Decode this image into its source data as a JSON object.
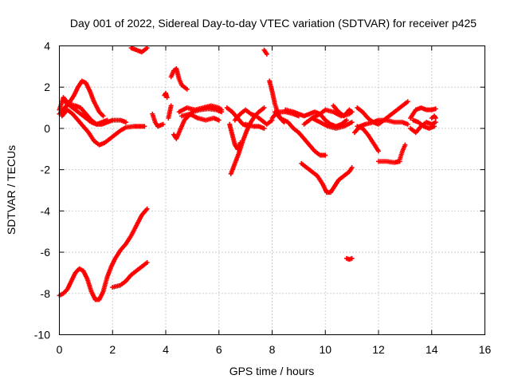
{
  "chart_data": {
    "type": "scatter",
    "title": "Day 001 of 2022, Sidereal Day-to-day VTEC variation (SDTVAR) for receiver p425",
    "xlabel": "GPS time / hours",
    "ylabel": "SDTVAR / TECUs",
    "xlim": [
      0,
      16
    ],
    "ylim": [
      -10,
      4
    ],
    "xticks": [
      "0",
      "2",
      "4",
      "6",
      "8",
      "10",
      "12",
      "14",
      "16"
    ],
    "yticks": [
      "-10",
      "-8",
      "-6",
      "-4",
      "-2",
      "0",
      "2",
      "4"
    ],
    "grid": true,
    "marker": "plus",
    "series": [
      {
        "name": "SDTVAR",
        "color": "#ff0000",
        "tracks": [
          [
            [
              0,
              0.9
            ],
            [
              0.15,
              1.5
            ],
            [
              0.35,
              1.2
            ],
            [
              0.6,
              1.1
            ],
            [
              0.8,
              1.0
            ],
            [
              1.0,
              0.7
            ],
            [
              1.2,
              0.4
            ],
            [
              1.4,
              0.2
            ],
            [
              1.6,
              0.2
            ],
            [
              1.8,
              0.3
            ],
            [
              2.0,
              0.4
            ],
            [
              2.3,
              0.4
            ],
            [
              2.5,
              0.3
            ]
          ],
          [
            [
              0,
              0.7
            ],
            [
              0.2,
              1.0
            ],
            [
              0.4,
              1.3
            ],
            [
              0.55,
              1.6
            ],
            [
              0.7,
              2.0
            ],
            [
              0.85,
              2.3
            ],
            [
              1.0,
              2.2
            ],
            [
              1.15,
              1.8
            ],
            [
              1.3,
              1.3
            ],
            [
              1.5,
              0.8
            ],
            [
              1.65,
              0.6
            ]
          ],
          [
            [
              0.1,
              0.6
            ],
            [
              0.3,
              0.9
            ],
            [
              0.5,
              0.7
            ],
            [
              0.7,
              0.4
            ],
            [
              0.9,
              0.1
            ],
            [
              1.1,
              -0.2
            ],
            [
              1.3,
              -0.6
            ],
            [
              1.5,
              -0.8
            ],
            [
              1.7,
              -0.7
            ],
            [
              1.9,
              -0.5
            ],
            [
              2.1,
              -0.3
            ],
            [
              2.3,
              -0.1
            ],
            [
              2.5,
              0.05
            ],
            [
              2.8,
              0.1
            ],
            [
              3.0,
              0.1
            ],
            [
              3.2,
              0.1
            ]
          ],
          [
            [
              0.2,
              1.3
            ],
            [
              0.4,
              1.1
            ],
            [
              0.6,
              0.9
            ],
            [
              0.8,
              0.7
            ],
            [
              1.0,
              0.5
            ],
            [
              1.2,
              0.3
            ],
            [
              1.4,
              0.2
            ],
            [
              1.6,
              0.3
            ],
            [
              1.8,
              0.4
            ]
          ],
          [
            [
              0,
              -8.1
            ],
            [
              0.15,
              -8.0
            ],
            [
              0.3,
              -7.8
            ],
            [
              0.45,
              -7.4
            ],
            [
              0.6,
              -7.0
            ],
            [
              0.75,
              -6.8
            ],
            [
              0.9,
              -6.9
            ],
            [
              1.05,
              -7.3
            ],
            [
              1.2,
              -7.9
            ],
            [
              1.35,
              -8.3
            ],
            [
              1.5,
              -8.3
            ],
            [
              1.65,
              -7.9
            ],
            [
              1.8,
              -7.2
            ],
            [
              1.95,
              -6.7
            ],
            [
              2.1,
              -6.3
            ],
            [
              2.3,
              -5.9
            ],
            [
              2.5,
              -5.6
            ],
            [
              2.7,
              -5.2
            ],
            [
              2.9,
              -4.7
            ],
            [
              3.1,
              -4.2
            ],
            [
              3.3,
              -3.9
            ]
          ],
          [
            [
              2.0,
              -7.7
            ],
            [
              2.3,
              -7.6
            ],
            [
              2.5,
              -7.4
            ],
            [
              2.7,
              -7.1
            ],
            [
              2.9,
              -6.9
            ],
            [
              3.1,
              -6.7
            ],
            [
              3.3,
              -6.5
            ]
          ],
          [
            [
              2.7,
              3.9
            ],
            [
              2.9,
              3.8
            ],
            [
              3.1,
              3.7
            ],
            [
              3.3,
              3.9
            ]
          ],
          [
            [
              3.5,
              0.7
            ],
            [
              3.6,
              0.3
            ],
            [
              3.7,
              0.1
            ],
            [
              3.9,
              0.2
            ]
          ],
          [
            [
              3.95,
              1.6
            ],
            [
              4.0,
              1.7
            ],
            [
              4.05,
              1.5
            ]
          ],
          [
            [
              4.1,
              0.5
            ],
            [
              4.15,
              0.8
            ],
            [
              4.2,
              1.1
            ]
          ],
          [
            [
              4.2,
              2.5
            ],
            [
              4.3,
              2.8
            ],
            [
              4.4,
              2.9
            ],
            [
              4.5,
              2.4
            ],
            [
              4.6,
              2.1
            ],
            [
              4.7,
              2.0
            ],
            [
              4.8,
              1.9
            ]
          ],
          [
            [
              4.3,
              -0.3
            ],
            [
              4.4,
              -0.5
            ],
            [
              4.5,
              -0.2
            ],
            [
              4.7,
              0.4
            ],
            [
              5.0,
              0.8
            ],
            [
              5.3,
              0.9
            ],
            [
              5.6,
              0.95
            ],
            [
              5.9,
              0.9
            ],
            [
              6.1,
              0.8
            ]
          ],
          [
            [
              4.5,
              0.8
            ],
            [
              4.8,
              1.0
            ],
            [
              5.1,
              0.9
            ],
            [
              5.4,
              1.0
            ],
            [
              5.7,
              1.1
            ],
            [
              6.0,
              1.0
            ],
            [
              6.1,
              0.9
            ]
          ],
          [
            [
              4.6,
              0.6
            ],
            [
              4.9,
              0.7
            ],
            [
              5.2,
              0.5
            ],
            [
              5.5,
              0.4
            ],
            [
              5.8,
              0.5
            ],
            [
              6.0,
              0.4
            ]
          ],
          [
            [
              6.3,
              1.0
            ],
            [
              6.5,
              0.8
            ],
            [
              6.7,
              0.5
            ],
            [
              6.9,
              0.2
            ],
            [
              7.1,
              0.1
            ]
          ],
          [
            [
              6.4,
              0.2
            ],
            [
              6.5,
              -0.3
            ],
            [
              6.6,
              -0.8
            ],
            [
              6.7,
              -1.0
            ],
            [
              6.8,
              -0.7
            ]
          ],
          [
            [
              6.45,
              -2.2
            ],
            [
              6.6,
              -1.7
            ],
            [
              6.75,
              -1.2
            ],
            [
              6.9,
              -0.6
            ],
            [
              7.05,
              -0.1
            ],
            [
              7.2,
              0.3
            ],
            [
              7.35,
              0.6
            ],
            [
              7.5,
              0.8
            ],
            [
              7.7,
              1.0
            ]
          ],
          [
            [
              6.6,
              0.4
            ],
            [
              6.8,
              0.7
            ],
            [
              7.0,
              0.9
            ],
            [
              7.2,
              0.7
            ],
            [
              7.4,
              0.6
            ],
            [
              7.6,
              0.4
            ],
            [
              7.8,
              0.2
            ],
            [
              8.0,
              0.4
            ]
          ],
          [
            [
              7.0,
              0.2
            ],
            [
              7.3,
              0.1
            ],
            [
              7.5,
              0.1
            ],
            [
              7.7,
              0.0
            ]
          ],
          [
            [
              7.7,
              3.8
            ],
            [
              7.8,
              3.6
            ]
          ],
          [
            [
              7.9,
              2.3
            ],
            [
              8.0,
              1.8
            ],
            [
              8.1,
              1.2
            ],
            [
              8.2,
              0.8
            ],
            [
              8.3,
              0.5
            ],
            [
              8.45,
              0.3
            ]
          ],
          [
            [
              8.0,
              0.5
            ],
            [
              8.2,
              0.8
            ],
            [
              8.5,
              0.8
            ],
            [
              8.8,
              0.7
            ],
            [
              9.0,
              0.6
            ]
          ],
          [
            [
              8.1,
              0.8
            ],
            [
              8.3,
              0.5
            ],
            [
              8.6,
              0.3
            ],
            [
              8.8,
              0.0
            ],
            [
              9.0,
              -0.2
            ],
            [
              9.2,
              -0.5
            ],
            [
              9.4,
              -0.8
            ],
            [
              9.6,
              -1.1
            ],
            [
              9.8,
              -1.3
            ],
            [
              10.0,
              -1.3
            ]
          ],
          [
            [
              8.5,
              0.9
            ],
            [
              8.8,
              0.8
            ],
            [
              9.0,
              0.7
            ],
            [
              9.2,
              0.6
            ],
            [
              9.4,
              0.7
            ],
            [
              9.6,
              0.8
            ],
            [
              9.8,
              0.7
            ],
            [
              10.0,
              0.4
            ],
            [
              10.2,
              0.2
            ],
            [
              10.4,
              0.1
            ],
            [
              10.6,
              0.2
            ],
            [
              10.8,
              0.4
            ]
          ],
          [
            [
              9.2,
              0.2
            ],
            [
              9.5,
              0.5
            ],
            [
              9.8,
              0.7
            ],
            [
              10.0,
              0.9
            ],
            [
              10.3,
              0.8
            ],
            [
              10.6,
              0.6
            ],
            [
              10.9,
              0.7
            ],
            [
              11.0,
              0.8
            ]
          ],
          [
            [
              9.5,
              0.5
            ],
            [
              9.8,
              0.3
            ],
            [
              10.1,
              0.1
            ],
            [
              10.4,
              0.0
            ],
            [
              10.7,
              0.1
            ],
            [
              11.0,
              0.3
            ]
          ],
          [
            [
              9.1,
              -1.7
            ],
            [
              9.3,
              -1.9
            ],
            [
              9.5,
              -2.1
            ],
            [
              9.7,
              -2.3
            ],
            [
              9.9,
              -2.7
            ],
            [
              10.05,
              -3.1
            ],
            [
              10.2,
              -3.1
            ],
            [
              10.35,
              -2.8
            ],
            [
              10.5,
              -2.5
            ],
            [
              10.7,
              -2.3
            ],
            [
              10.9,
              -2.1
            ],
            [
              11.0,
              -1.9
            ]
          ],
          [
            [
              10.3,
              1.1
            ],
            [
              10.5,
              0.8
            ],
            [
              10.7,
              0.6
            ],
            [
              10.9,
              0.9
            ],
            [
              11.0,
              0.8
            ]
          ],
          [
            [
              10.8,
              -6.3
            ],
            [
              10.9,
              -6.35
            ],
            [
              11.0,
              -6.3
            ]
          ],
          [
            [
              11.2,
              1.0
            ],
            [
              11.4,
              0.8
            ],
            [
              11.6,
              0.5
            ],
            [
              11.8,
              0.3
            ],
            [
              12.0,
              0.2
            ],
            [
              12.2,
              0.4
            ],
            [
              12.4,
              0.6
            ],
            [
              12.6,
              0.8
            ],
            [
              12.8,
              1.0
            ],
            [
              13.0,
              1.2
            ],
            [
              13.1,
              1.3
            ]
          ],
          [
            [
              11.1,
              -0.2
            ],
            [
              11.3,
              0.1
            ],
            [
              11.5,
              0.2
            ],
            [
              11.8,
              0.3
            ],
            [
              12.0,
              0.4
            ],
            [
              12.3,
              0.4
            ],
            [
              12.6,
              0.3
            ],
            [
              12.9,
              0.3
            ],
            [
              13.1,
              0.2
            ]
          ],
          [
            [
              11.2,
              0.1
            ],
            [
              11.4,
              0.0
            ],
            [
              11.6,
              -0.3
            ],
            [
              11.8,
              -0.7
            ],
            [
              12.0,
              -1.1
            ]
          ],
          [
            [
              12.0,
              -1.6
            ],
            [
              12.3,
              -1.6
            ],
            [
              12.6,
              -1.65
            ],
            [
              12.8,
              -1.6
            ]
          ],
          [
            [
              12.8,
              -1.5
            ],
            [
              12.9,
              -1.1
            ],
            [
              13.0,
              -0.8
            ]
          ],
          [
            [
              13.2,
              0.5
            ],
            [
              13.4,
              0.9
            ],
            [
              13.6,
              1.0
            ],
            [
              13.8,
              0.9
            ],
            [
              14.0,
              0.9
            ],
            [
              14.15,
              0.95
            ]
          ],
          [
            [
              13.2,
              0.0
            ],
            [
              13.4,
              -0.2
            ],
            [
              13.6,
              0.1
            ],
            [
              13.8,
              0.3
            ],
            [
              14.0,
              0.2
            ],
            [
              14.15,
              0.3
            ]
          ],
          [
            [
              13.3,
              0.4
            ],
            [
              13.5,
              0.3
            ],
            [
              13.7,
              0.1
            ],
            [
              13.9,
              0.0
            ],
            [
              14.1,
              0.1
            ]
          ],
          [
            [
              14.0,
              0.5
            ],
            [
              14.1,
              0.6
            ],
            [
              14.15,
              0.5
            ]
          ]
        ]
      }
    ]
  }
}
